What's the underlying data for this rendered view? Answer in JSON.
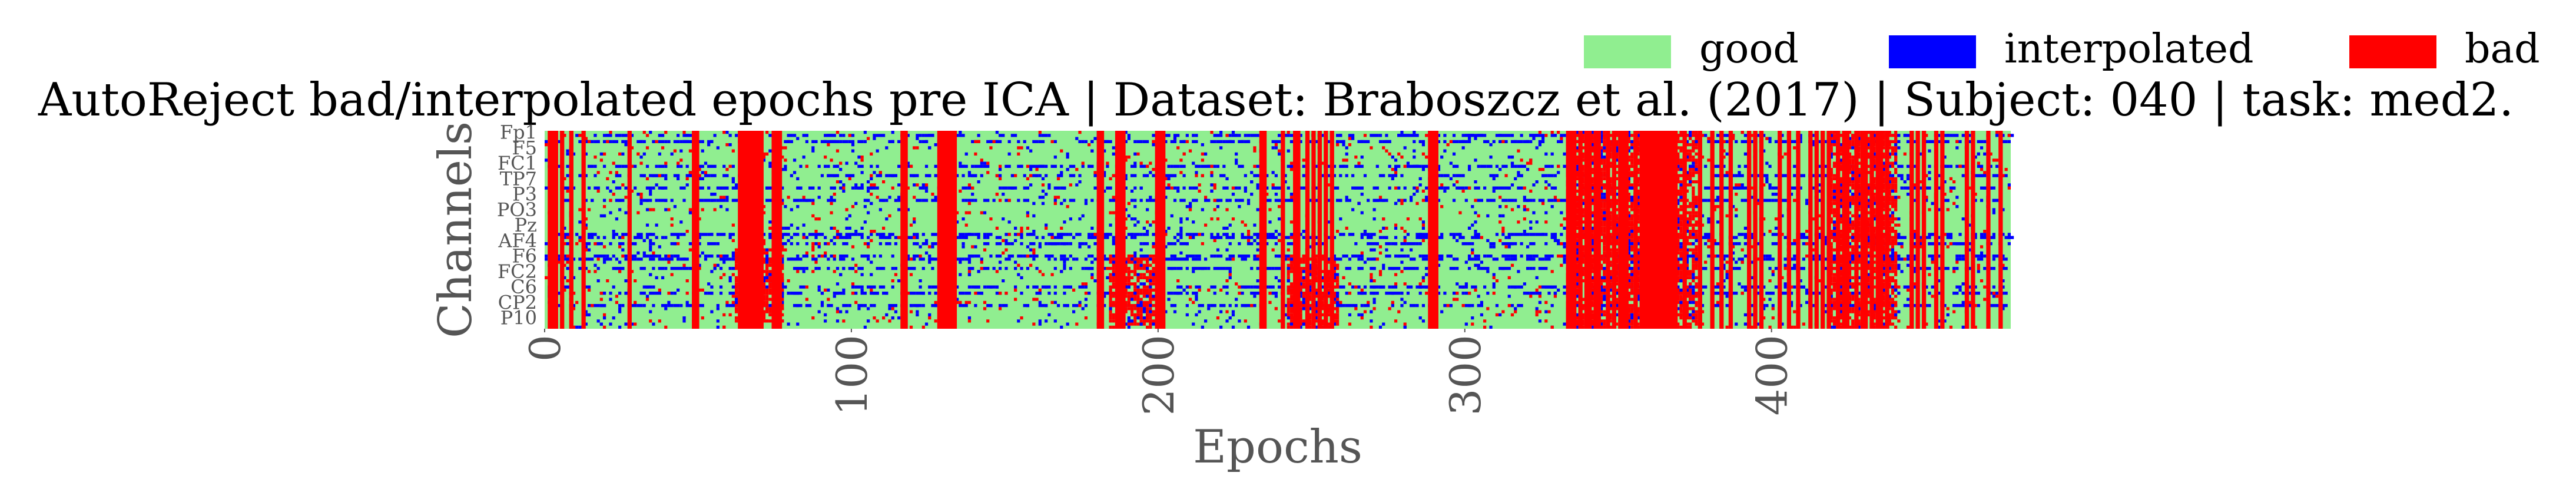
{
  "chart_data": {
    "type": "heatmap",
    "title": "AutoReject bad/interpolated epochs pre ICA | Dataset: Braboszcz et al. (2017) | Subject: 040 | task: med2.",
    "xlabel": "Epochs",
    "ylabel": "Channels",
    "xlim": [
      0,
      478
    ],
    "x_ticks": [
      0,
      100,
      200,
      300,
      400
    ],
    "n_epochs": 478,
    "channel_tick_labels": [
      "Fp1",
      "F5",
      "FC1",
      "TP7",
      "P3",
      "PO3",
      "Pz",
      "AF4",
      "F6",
      "FC2",
      "C6",
      "CP2",
      "P10"
    ],
    "n_channels": 64,
    "legend": [
      {
        "label": "good",
        "color": "#90ee90"
      },
      {
        "label": "interpolated",
        "color": "#0000ff"
      },
      {
        "label": "bad",
        "color": "#ff0000"
      }
    ],
    "legend_placement": "top-right",
    "grid": false,
    "bad_epoch_columns": [
      1,
      2,
      3,
      5,
      8,
      12,
      27,
      48,
      49,
      63,
      64,
      65,
      66,
      67,
      68,
      69,
      70,
      74,
      75,
      76,
      116,
      117,
      128,
      129,
      130,
      131,
      132,
      133,
      180,
      181,
      186,
      187,
      188,
      199,
      200,
      201,
      233,
      234,
      240,
      244,
      245,
      248,
      250,
      252,
      254,
      256,
      288,
      289,
      290,
      333,
      334,
      335,
      337,
      339,
      340,
      342,
      343,
      346,
      348,
      350,
      351,
      352,
      355,
      357,
      358,
      359,
      360,
      361,
      362,
      363,
      364,
      365,
      366,
      367,
      368,
      371,
      376,
      380,
      383,
      386,
      392,
      394,
      396,
      402,
      405,
      408,
      412,
      414,
      416,
      418,
      421,
      423,
      424,
      427,
      429,
      430,
      432,
      434,
      435,
      437,
      445,
      447,
      449,
      453,
      455,
      463,
      465,
      470,
      474
    ],
    "interpolated_channel_rows": [
      1,
      3,
      11,
      14,
      18,
      22,
      33,
      34,
      36,
      40,
      41,
      44,
      50,
      52,
      56
    ],
    "dense_bad_epoch_ranges": [
      [
        62,
        77
      ],
      [
        184,
        200
      ],
      [
        242,
        258
      ],
      [
        333,
        375
      ],
      [
        418,
        440
      ]
    ],
    "dense_bad_row_ranges": [
      [
        38,
        62
      ],
      [
        40,
        64
      ],
      [
        40,
        64
      ],
      [
        0,
        64
      ],
      [
        0,
        64
      ]
    ]
  }
}
